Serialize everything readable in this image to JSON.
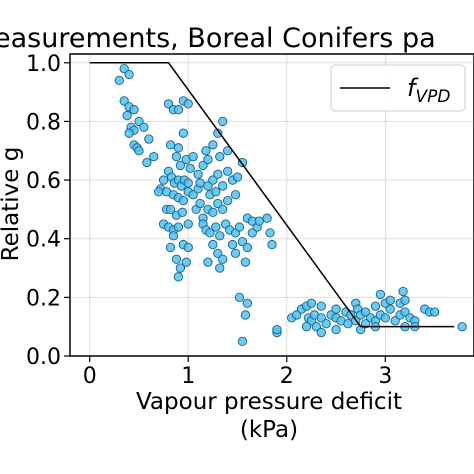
{
  "chart_data": {
    "type": "scatter",
    "title": "easurements, Boreal Conifers pa",
    "xlabel_line1": "Vapour pressure deficit",
    "xlabel_line2": "(kPa)",
    "ylabel": "Relative g",
    "xlim": [
      -0.2,
      3.9
    ],
    "ylim": [
      0.0,
      1.03
    ],
    "xticks": [
      0,
      1,
      2,
      3
    ],
    "yticks": [
      0.0,
      0.2,
      0.4,
      0.6,
      0.8,
      1.0
    ],
    "xtick_labels": [
      "0",
      "1",
      "2",
      "3"
    ],
    "ytick_labels": [
      "0.0",
      "0.2",
      "0.4",
      "0.6",
      "0.8",
      "1.0"
    ],
    "grid": true,
    "legend_position": "top-right",
    "series": [
      {
        "name": "f_VPD",
        "legend_base": "f",
        "legend_sub": "VPD",
        "kind": "line",
        "color": "#000000",
        "x": [
          0.0,
          0.8,
          2.75,
          3.7
        ],
        "y": [
          1.0,
          1.0,
          0.1,
          0.1
        ]
      },
      {
        "kind": "scatter",
        "color": "#4fc3f7",
        "edge_color": "#1f5f7a",
        "points": [
          [
            0.3,
            0.94
          ],
          [
            0.35,
            0.98
          ],
          [
            0.4,
            0.96
          ],
          [
            0.35,
            0.87
          ],
          [
            0.4,
            0.85
          ],
          [
            0.45,
            0.84
          ],
          [
            0.38,
            0.82
          ],
          [
            0.42,
            0.78
          ],
          [
            0.45,
            0.77
          ],
          [
            0.4,
            0.76
          ],
          [
            0.5,
            0.8
          ],
          [
            0.55,
            0.78
          ],
          [
            0.45,
            0.72
          ],
          [
            0.48,
            0.71
          ],
          [
            0.5,
            0.7
          ],
          [
            0.6,
            0.74
          ],
          [
            0.58,
            0.66
          ],
          [
            0.65,
            0.68
          ],
          [
            0.72,
            0.57
          ],
          [
            0.7,
            0.56
          ],
          [
            0.75,
            0.6
          ],
          [
            0.78,
            0.56
          ],
          [
            0.8,
            0.86
          ],
          [
            0.85,
            0.84
          ],
          [
            0.9,
            0.84
          ],
          [
            0.95,
            0.87
          ],
          [
            1.0,
            0.86
          ],
          [
            0.82,
            0.72
          ],
          [
            0.9,
            0.71
          ],
          [
            0.95,
            0.76
          ],
          [
            0.88,
            0.68
          ],
          [
            0.92,
            0.65
          ],
          [
            0.98,
            0.67
          ],
          [
            1.02,
            0.64
          ],
          [
            1.05,
            0.68
          ],
          [
            0.8,
            0.63
          ],
          [
            0.83,
            0.61
          ],
          [
            0.86,
            0.59
          ],
          [
            0.9,
            0.6
          ],
          [
            0.93,
            0.58
          ],
          [
            0.96,
            0.6
          ],
          [
            1.0,
            0.59
          ],
          [
            0.85,
            0.55
          ],
          [
            0.9,
            0.54
          ],
          [
            0.95,
            0.53
          ],
          [
            1.0,
            0.56
          ],
          [
            1.05,
            0.55
          ],
          [
            1.1,
            0.57
          ],
          [
            0.78,
            0.5
          ],
          [
            0.82,
            0.5
          ],
          [
            0.88,
            0.48
          ],
          [
            0.94,
            0.49
          ],
          [
            1.08,
            0.5
          ],
          [
            1.12,
            0.52
          ],
          [
            0.75,
            0.45
          ],
          [
            0.8,
            0.44
          ],
          [
            0.85,
            0.43
          ],
          [
            0.9,
            0.44
          ],
          [
            1.0,
            0.45
          ],
          [
            1.15,
            0.47
          ],
          [
            0.82,
            0.37
          ],
          [
            0.88,
            0.33
          ],
          [
            0.92,
            0.3
          ],
          [
            0.9,
            0.27
          ],
          [
            0.95,
            0.38
          ],
          [
            1.0,
            0.37
          ],
          [
            0.98,
            0.32
          ],
          [
            0.85,
            0.41
          ],
          [
            1.1,
            0.62
          ],
          [
            1.15,
            0.65
          ],
          [
            1.18,
            0.7
          ],
          [
            1.2,
            0.67
          ],
          [
            1.12,
            0.59
          ],
          [
            1.2,
            0.58
          ],
          [
            1.25,
            0.6
          ],
          [
            1.22,
            0.55
          ],
          [
            1.28,
            0.56
          ],
          [
            1.3,
            0.62
          ],
          [
            1.35,
            0.58
          ],
          [
            1.4,
            0.63
          ],
          [
            1.45,
            0.6
          ],
          [
            1.5,
            0.61
          ],
          [
            1.2,
            0.5
          ],
          [
            1.25,
            0.49
          ],
          [
            1.3,
            0.52
          ],
          [
            1.35,
            0.5
          ],
          [
            1.4,
            0.53
          ],
          [
            1.48,
            0.55
          ],
          [
            1.15,
            0.45
          ],
          [
            1.18,
            0.43
          ],
          [
            1.22,
            0.42
          ],
          [
            1.28,
            0.44
          ],
          [
            1.32,
            0.41
          ],
          [
            1.38,
            0.45
          ],
          [
            1.42,
            0.43
          ],
          [
            1.48,
            0.42
          ],
          [
            1.52,
            0.44
          ],
          [
            1.25,
            0.38
          ],
          [
            1.3,
            0.35
          ],
          [
            1.35,
            0.33
          ],
          [
            1.32,
            0.3
          ],
          [
            1.2,
            0.32
          ],
          [
            1.45,
            0.38
          ],
          [
            1.48,
            0.35
          ],
          [
            1.55,
            0.39
          ],
          [
            1.6,
            0.37
          ],
          [
            1.65,
            0.42
          ],
          [
            1.7,
            0.44
          ],
          [
            1.35,
            0.8
          ],
          [
            1.3,
            0.76
          ],
          [
            1.25,
            0.72
          ],
          [
            1.32,
            0.68
          ],
          [
            1.4,
            0.7
          ],
          [
            1.55,
            0.66
          ],
          [
            1.6,
            0.47
          ],
          [
            1.65,
            0.46
          ],
          [
            1.72,
            0.46
          ],
          [
            1.8,
            0.47
          ],
          [
            1.83,
            0.42
          ],
          [
            1.85,
            0.38
          ],
          [
            1.58,
            0.32
          ],
          [
            1.52,
            0.2
          ],
          [
            1.6,
            0.18
          ],
          [
            1.58,
            0.14
          ],
          [
            1.55,
            0.05
          ],
          [
            1.9,
            0.08
          ],
          [
            1.9,
            0.09
          ],
          [
            2.05,
            0.13
          ],
          [
            2.1,
            0.14
          ],
          [
            2.15,
            0.16
          ],
          [
            2.2,
            0.17
          ],
          [
            2.22,
            0.13
          ],
          [
            2.25,
            0.12
          ],
          [
            2.28,
            0.14
          ],
          [
            2.3,
            0.1
          ],
          [
            2.35,
            0.13
          ],
          [
            2.4,
            0.11
          ],
          [
            2.45,
            0.14
          ],
          [
            2.5,
            0.13
          ],
          [
            2.55,
            0.12
          ],
          [
            2.6,
            0.15
          ],
          [
            2.62,
            0.11
          ],
          [
            2.65,
            0.14
          ],
          [
            2.7,
            0.12
          ],
          [
            2.25,
            0.18
          ],
          [
            2.35,
            0.17
          ],
          [
            2.5,
            0.16
          ],
          [
            2.7,
            0.18
          ],
          [
            2.72,
            0.16
          ],
          [
            2.75,
            0.14
          ],
          [
            2.8,
            0.15
          ],
          [
            2.85,
            0.13
          ],
          [
            2.9,
            0.12
          ],
          [
            2.95,
            0.14
          ],
          [
            3.0,
            0.13
          ],
          [
            3.05,
            0.16
          ],
          [
            3.1,
            0.12
          ],
          [
            3.15,
            0.14
          ],
          [
            3.2,
            0.15
          ],
          [
            3.25,
            0.13
          ],
          [
            3.3,
            0.12
          ],
          [
            2.9,
            0.17
          ],
          [
            3.0,
            0.18
          ],
          [
            3.05,
            0.19
          ],
          [
            3.15,
            0.18
          ],
          [
            3.2,
            0.19
          ],
          [
            3.18,
            0.22
          ],
          [
            2.95,
            0.21
          ],
          [
            3.4,
            0.16
          ],
          [
            3.45,
            0.15
          ],
          [
            3.5,
            0.15
          ],
          [
            3.2,
            0.1
          ],
          [
            3.3,
            0.1
          ],
          [
            3.78,
            0.1
          ],
          [
            2.75,
            0.09
          ],
          [
            2.8,
            0.11
          ],
          [
            2.9,
            0.1
          ],
          [
            2.35,
            0.08
          ],
          [
            2.5,
            0.09
          ],
          [
            2.2,
            0.1
          ]
        ]
      }
    ]
  }
}
